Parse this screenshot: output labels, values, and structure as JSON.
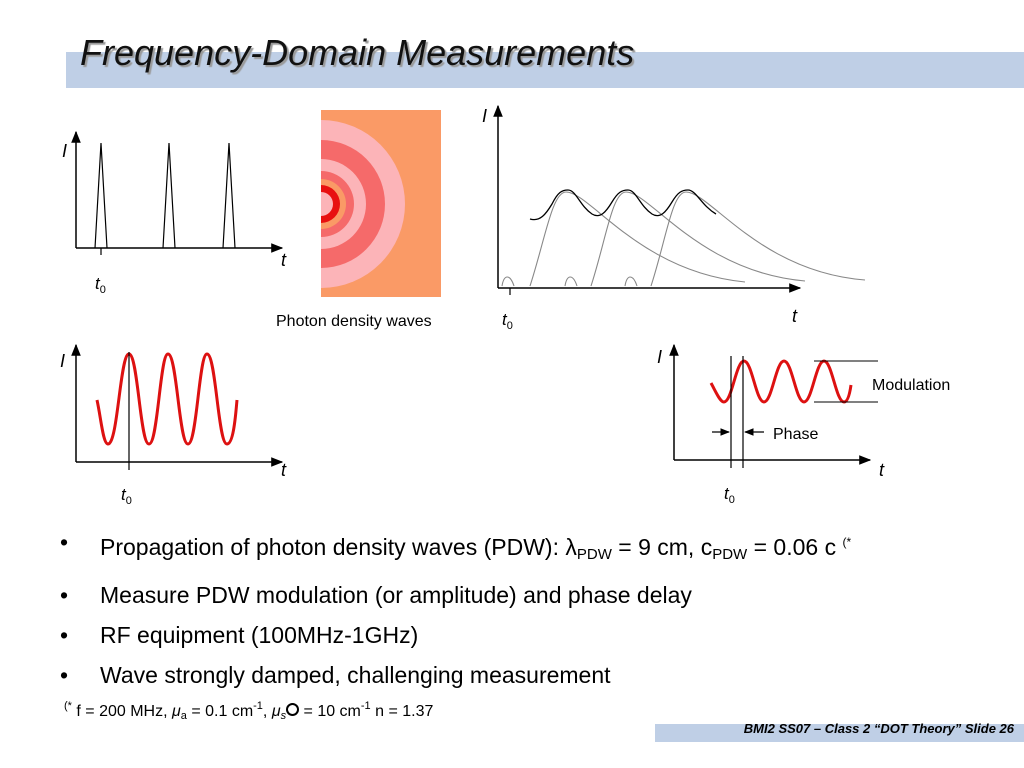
{
  "slide": {
    "title": "Frequency-Domain Measurements",
    "footer": "BMI2 SS07 – Class 2 “DOT Theory” Slide 26"
  },
  "figures": {
    "axis_I": "I",
    "axis_t": "t",
    "t0_base": "t",
    "t0_sub": "0",
    "photon_caption": "Photon density waves",
    "modulation_label": "Modulation",
    "phase_label": "Phase"
  },
  "bullets": [
    {
      "prefix": "Propagation of photon density waves (PDW): ",
      "lambda": "λ",
      "sub1": "PDW",
      "mid": " = 9 cm, c",
      "sub2": "PDW",
      "tail": " = 0.06 c ",
      "sup": "(*"
    },
    {
      "text": "Measure PDW modulation (or amplitude) and phase delay"
    },
    {
      "text": "RF equipment (100MHz-1GHz)"
    },
    {
      "text": "Wave strongly damped, challenging measurement"
    }
  ],
  "footnote": {
    "sup": "(*",
    "p1": " f = 200 MHz, ",
    "mu": "μ",
    "sub_a": "a",
    "p2": " = 0.1 cm",
    "exp1": "-1",
    "p3": ", ",
    "mu2": "μ",
    "sub_s": "s",
    "p4": " = 10 cm",
    "exp2": "-1",
    "p5": " n = 1.37"
  },
  "colors": {
    "title_band": "#bfcfe6",
    "wave_red": "#dd1111",
    "pdw_background": "#fa9a66",
    "pdw_ring_light": "#fcb4b8",
    "pdw_ring_mid": "#f56a6a",
    "pdw_ring_dark": "#e81010"
  }
}
